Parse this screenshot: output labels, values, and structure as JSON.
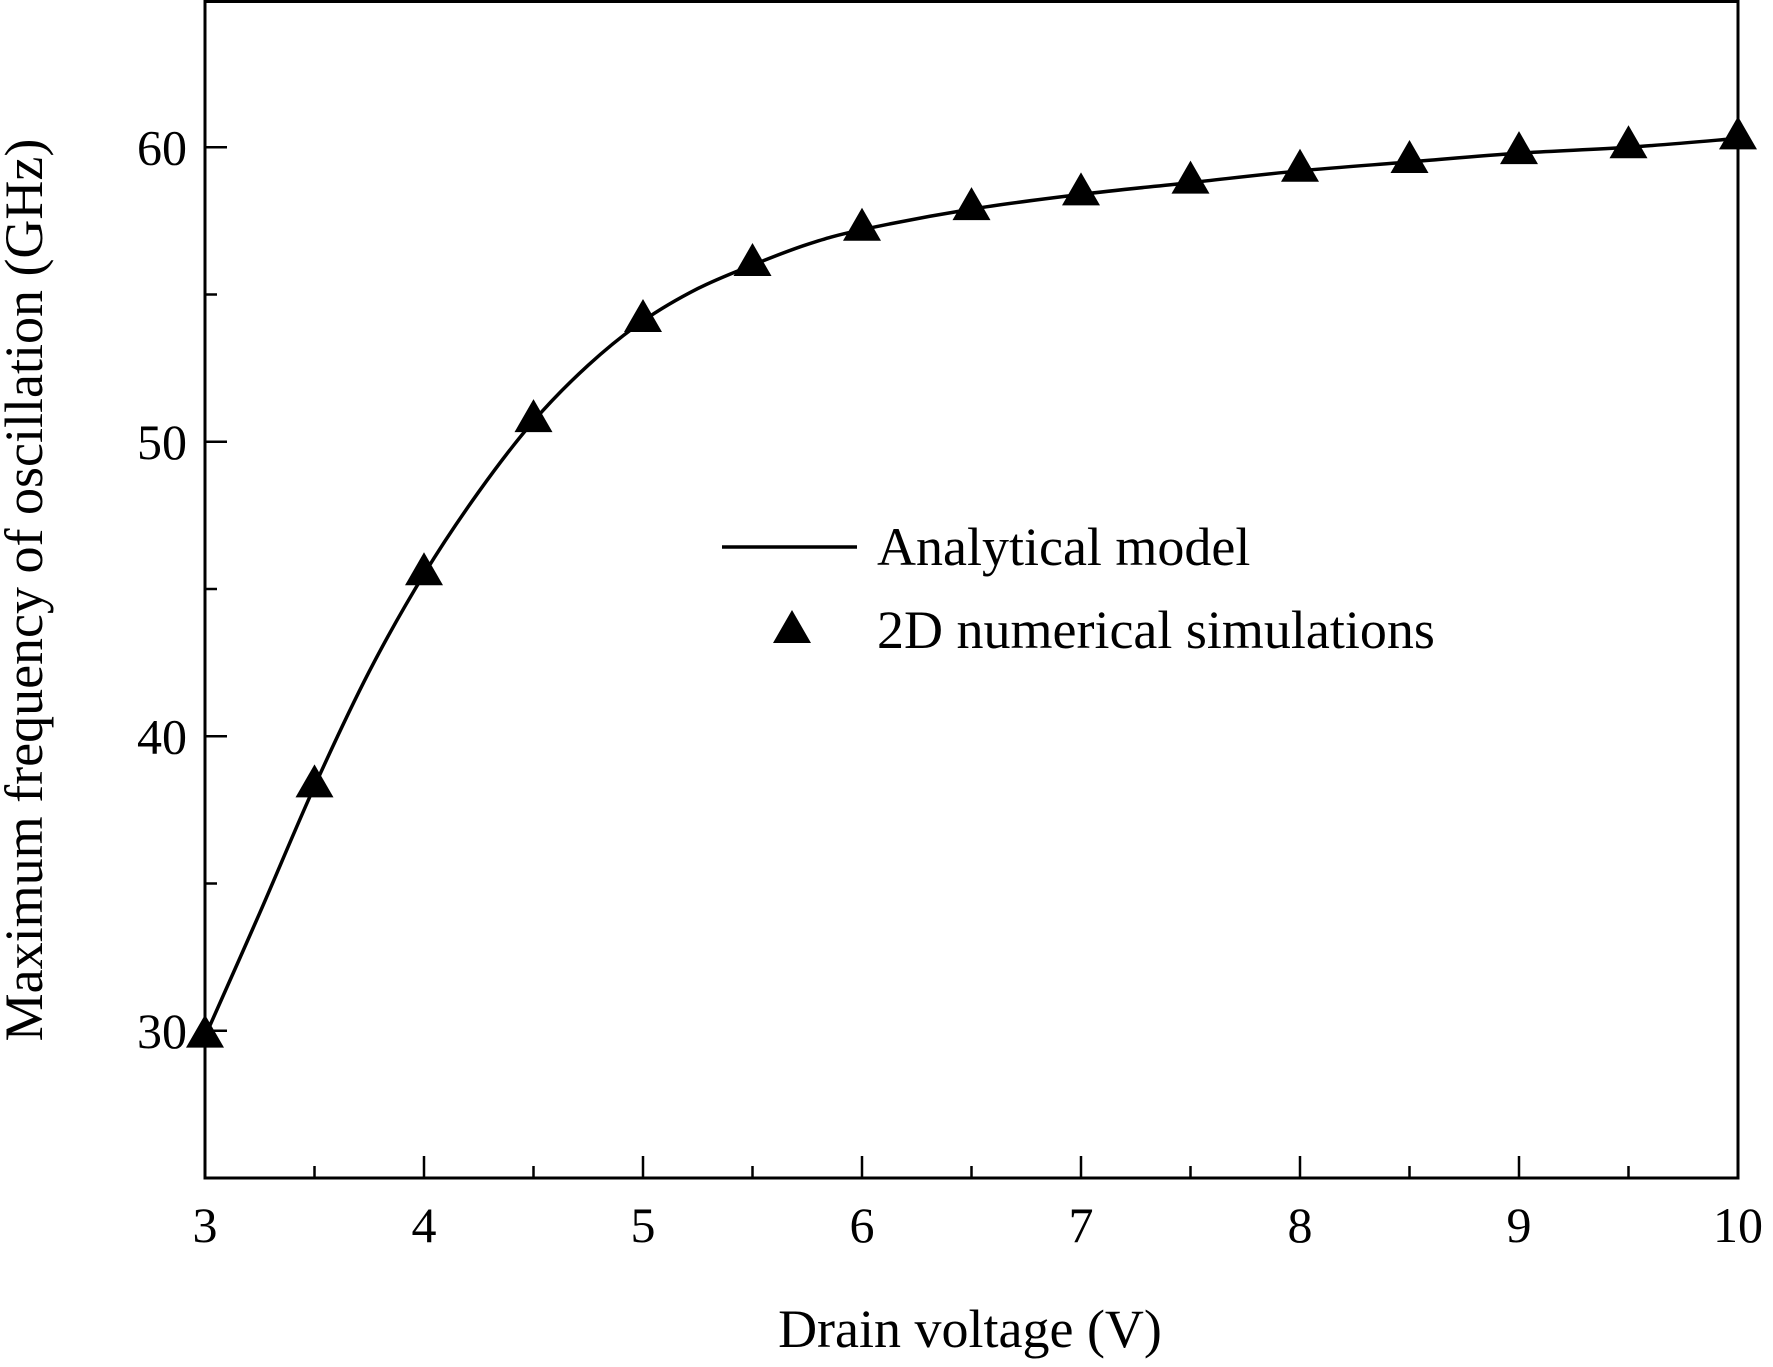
{
  "chart_data": {
    "type": "line",
    "xlabel": "Drain voltage (V)",
    "ylabel": "Maximum frequency of oscillation (GHz)",
    "xlim": [
      3,
      10
    ],
    "ylim": [
      25,
      65
    ],
    "x_ticks": [
      3,
      4,
      5,
      6,
      7,
      8,
      9,
      10
    ],
    "x_minor_ticks": [
      3.5,
      4.5,
      5.5,
      6.5,
      7.5,
      8.5,
      9.5
    ],
    "y_ticks": [
      30,
      40,
      50,
      60
    ],
    "y_minor_ticks": [
      35,
      45,
      55
    ],
    "grid": false,
    "legend_position": "center-right",
    "series": [
      {
        "name": "Analytical model",
        "style": "line",
        "color": "#000000",
        "x": [
          3.0,
          3.25,
          3.5,
          3.75,
          4.0,
          4.25,
          4.5,
          4.75,
          5.0,
          5.25,
          5.5,
          5.75,
          6.0,
          6.5,
          7.0,
          7.5,
          8.0,
          8.5,
          9.0,
          9.5,
          10.0
        ],
        "y": [
          29.8,
          34.0,
          38.3,
          42.2,
          45.5,
          48.3,
          50.7,
          52.6,
          54.1,
          55.2,
          56.0,
          56.7,
          57.2,
          57.9,
          58.4,
          58.8,
          59.2,
          59.5,
          59.8,
          60.0,
          60.3
        ]
      },
      {
        "name": "2D numerical simulations",
        "style": "triangle-markers",
        "color": "#000000",
        "x": [
          3.0,
          3.5,
          4.0,
          4.5,
          5.0,
          5.5,
          6.0,
          6.5,
          7.0,
          7.5,
          8.0,
          8.5,
          9.0,
          9.5,
          10.0
        ],
        "y": [
          29.8,
          38.3,
          45.5,
          50.7,
          54.1,
          56.0,
          57.2,
          57.9,
          58.4,
          58.8,
          59.2,
          59.5,
          59.8,
          60.0,
          60.3
        ]
      }
    ]
  }
}
